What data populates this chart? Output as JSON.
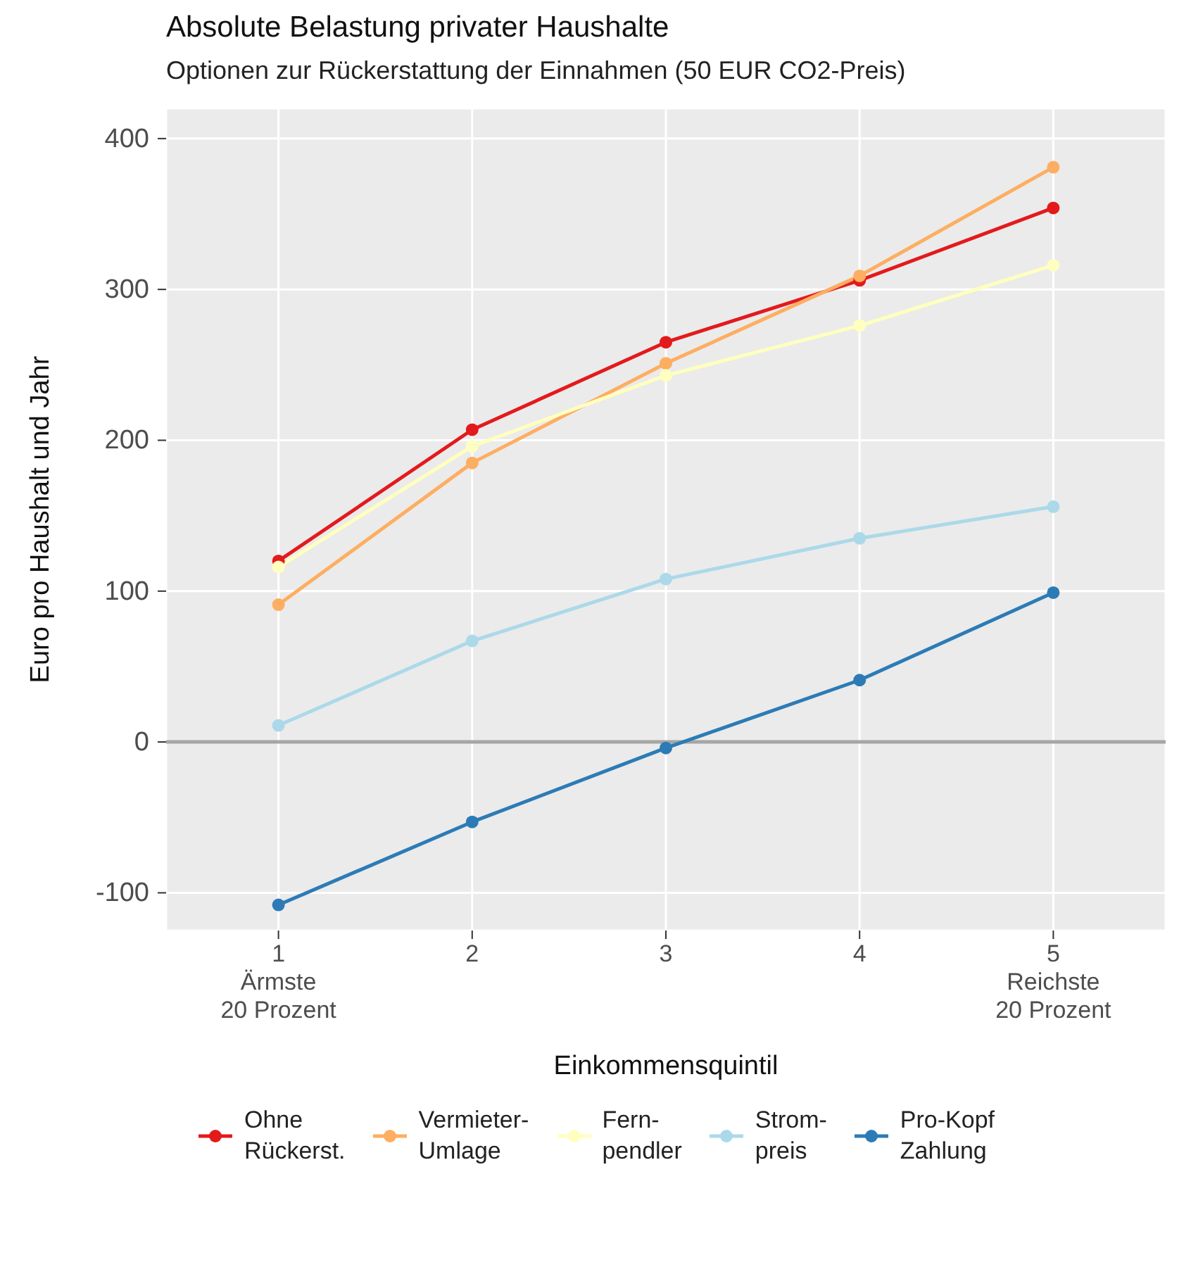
{
  "chart_data": {
    "type": "line",
    "title": "Absolute Belastung privater Haushalte",
    "subtitle": "Optionen zur Rückerstattung der Einnahmen (50 EUR CO2-Preis)",
    "xlabel": "Einkommensquintil",
    "ylabel": "Euro pro Haushalt und Jahr",
    "x": [
      1,
      2,
      3,
      4,
      5
    ],
    "xlim": [
      0.42,
      5.58
    ],
    "xticks": [
      {
        "value": 1,
        "label": "1\nÄrmste\n20 Prozent"
      },
      2,
      3,
      4,
      {
        "value": 5,
        "label": "5\nReichste\n20 Prozent"
      }
    ],
    "ylim": [
      -125,
      420
    ],
    "yticks": [
      -100,
      0,
      100,
      200,
      300,
      400
    ],
    "grid": true,
    "legend": "bottom",
    "marker": "circle",
    "line_style": "solid",
    "ref_lines": [
      {
        "axis": "y",
        "value": 0,
        "color": "#a6a6a6"
      }
    ],
    "series": [
      {
        "name": "Ohne\nRückerst.",
        "color": "#e31a1c",
        "values": [
          120,
          207,
          265,
          306,
          354
        ]
      },
      {
        "name": "Vermieter-\nUmlage",
        "color": "#fdae61",
        "values": [
          91,
          185,
          251,
          309,
          381
        ]
      },
      {
        "name": "Fern-\npendler",
        "color": "#ffffbf",
        "values": [
          116,
          196,
          243,
          276,
          316
        ]
      },
      {
        "name": "Strom-\npreis",
        "color": "#abd9e9",
        "values": [
          11,
          67,
          108,
          135,
          156
        ]
      },
      {
        "name": "Pro-Kopf\nZahlung",
        "color": "#2c7bb6",
        "values": [
          -108,
          -53,
          -4,
          41,
          99
        ]
      }
    ]
  }
}
